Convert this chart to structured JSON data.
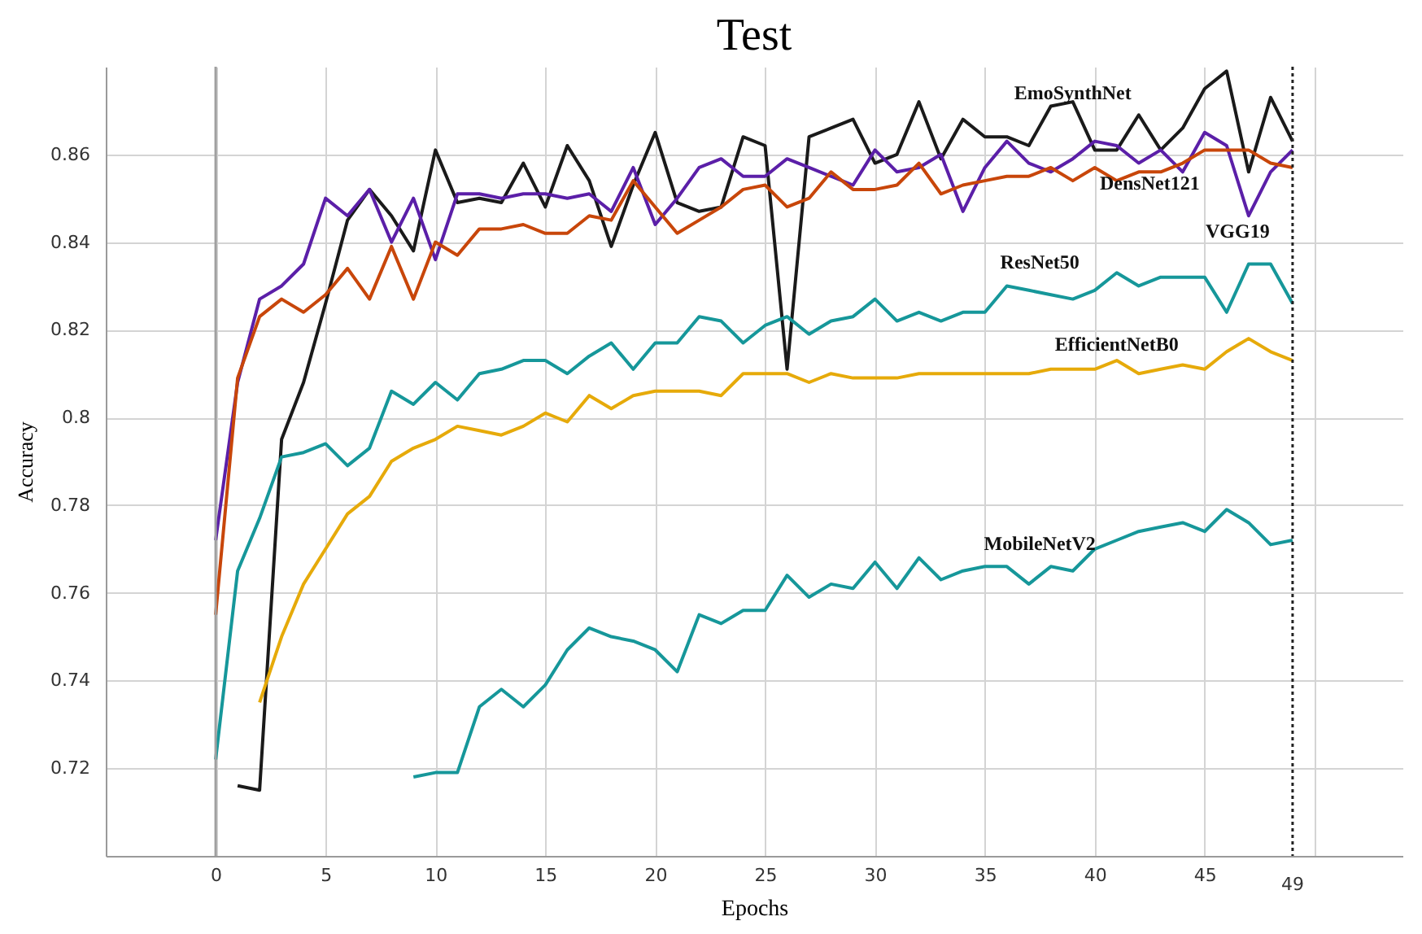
{
  "chart_data": {
    "type": "line",
    "title": "Test",
    "xlabel": "Epochs",
    "ylabel": "Accuracy",
    "x": [
      0,
      1,
      2,
      3,
      4,
      5,
      6,
      7,
      8,
      9,
      10,
      11,
      12,
      13,
      14,
      15,
      16,
      17,
      18,
      19,
      20,
      21,
      22,
      23,
      24,
      25,
      26,
      27,
      28,
      29,
      30,
      31,
      32,
      33,
      34,
      35,
      36,
      37,
      38,
      39,
      40,
      41,
      42,
      43,
      44,
      45,
      46,
      47,
      48,
      49
    ],
    "series": [
      {
        "name": "EmoSynthNet",
        "color": "#1a1a1a",
        "values": [
          null,
          0.716,
          0.715,
          0.795,
          0.808,
          0.826,
          0.845,
          0.852,
          0.846,
          0.838,
          0.861,
          0.849,
          0.85,
          0.849,
          0.858,
          0.848,
          0.862,
          0.854,
          0.839,
          0.853,
          0.865,
          0.849,
          0.847,
          0.848,
          0.864,
          0.862,
          0.811,
          0.864,
          0.866,
          0.868,
          0.858,
          0.86,
          0.872,
          0.859,
          0.868,
          0.864,
          0.864,
          0.862,
          0.871,
          0.872,
          0.861,
          0.861,
          0.869,
          0.861,
          0.866,
          0.875,
          0.879,
          0.856,
          0.873,
          0.863
        ]
      },
      {
        "name": "VGG19",
        "color": "#5b1fa8",
        "values": [
          0.772,
          0.808,
          0.827,
          0.83,
          0.835,
          0.85,
          0.846,
          0.852,
          0.84,
          0.85,
          0.836,
          0.851,
          0.851,
          0.85,
          0.851,
          0.851,
          0.85,
          0.851,
          0.847,
          0.857,
          0.844,
          0.85,
          0.857,
          0.859,
          0.855,
          0.855,
          0.859,
          0.857,
          0.855,
          0.853,
          0.861,
          0.856,
          0.857,
          0.86,
          0.847,
          0.857,
          0.863,
          0.858,
          0.856,
          0.859,
          0.863,
          0.862,
          0.858,
          0.861,
          0.856,
          0.865,
          0.862,
          0.846,
          0.856,
          0.861
        ]
      },
      {
        "name": "DensNet121",
        "color": "#c8460a",
        "values": [
          0.755,
          0.809,
          0.823,
          0.827,
          0.824,
          0.828,
          0.834,
          0.827,
          0.839,
          0.827,
          0.84,
          0.837,
          0.843,
          0.843,
          0.844,
          0.842,
          0.842,
          0.846,
          0.845,
          0.854,
          0.848,
          0.842,
          0.845,
          0.848,
          0.852,
          0.853,
          0.848,
          0.85,
          0.856,
          0.852,
          0.852,
          0.853,
          0.858,
          0.851,
          0.853,
          0.854,
          0.855,
          0.855,
          0.857,
          0.854,
          0.857,
          0.854,
          0.856,
          0.856,
          0.858,
          0.861,
          0.861,
          0.861,
          0.858,
          0.857
        ]
      },
      {
        "name": "ResNet50",
        "color": "#16979a",
        "values": [
          0.722,
          0.765,
          0.777,
          0.791,
          0.792,
          0.794,
          0.789,
          0.793,
          0.806,
          0.803,
          0.808,
          0.804,
          0.81,
          0.811,
          0.813,
          0.813,
          0.81,
          0.814,
          0.817,
          0.811,
          0.817,
          0.817,
          0.823,
          0.822,
          0.817,
          0.821,
          0.823,
          0.819,
          0.822,
          0.823,
          0.827,
          0.822,
          0.824,
          0.822,
          0.824,
          0.824,
          0.83,
          0.829,
          0.828,
          0.827,
          0.829,
          0.833,
          0.83,
          0.832,
          0.832,
          0.832,
          0.824,
          0.835,
          0.835,
          0.826
        ]
      },
      {
        "name": "EfficientNetB0",
        "color": "#e6aa0a",
        "values": [
          null,
          null,
          0.735,
          0.75,
          0.762,
          0.77,
          0.778,
          0.782,
          0.79,
          0.793,
          0.795,
          0.798,
          0.797,
          0.796,
          0.798,
          0.801,
          0.799,
          0.805,
          0.802,
          0.805,
          0.806,
          0.806,
          0.806,
          0.805,
          0.81,
          0.81,
          0.81,
          0.808,
          0.81,
          0.809,
          0.809,
          0.809,
          0.81,
          0.81,
          0.81,
          0.81,
          0.81,
          0.81,
          0.811,
          0.811,
          0.811,
          0.813,
          0.81,
          0.811,
          0.812,
          0.811,
          0.815,
          0.818,
          0.815,
          0.813
        ]
      },
      {
        "name": "MobileNetV2",
        "color": "#16979a",
        "values": [
          null,
          null,
          null,
          null,
          null,
          null,
          null,
          null,
          null,
          0.718,
          0.719,
          0.719,
          0.734,
          0.738,
          0.734,
          0.739,
          0.747,
          0.752,
          0.75,
          0.749,
          0.747,
          0.742,
          0.755,
          0.753,
          0.756,
          0.756,
          0.764,
          0.759,
          0.762,
          0.761,
          0.767,
          0.761,
          0.768,
          0.763,
          0.765,
          0.766,
          0.766,
          0.762,
          0.766,
          0.765,
          0.77,
          0.772,
          0.774,
          0.775,
          0.776,
          0.774,
          0.779,
          0.776,
          0.771,
          0.772
        ]
      }
    ],
    "xlim": [
      -5,
      54
    ],
    "xticks": [
      {
        "value": -5,
        "label": null
      },
      0,
      5,
      10,
      15,
      20,
      25,
      30,
      35,
      40,
      45,
      {
        "value": 50,
        "label": null
      }
    ],
    "ylim": [
      0.7,
      0.88
    ],
    "yticks": [
      0.72,
      0.74,
      0.76,
      0.78,
      0.8,
      0.82,
      0.84,
      0.86
    ],
    "grid": true,
    "ref_lines": [
      {
        "axis": "x",
        "value": 0,
        "label": null,
        "color": "#a0a0a0",
        "line_style": "solid"
      },
      {
        "axis": "x",
        "value": 49,
        "label": "49",
        "color": "#222222",
        "line_style": "dotted"
      }
    ]
  }
}
